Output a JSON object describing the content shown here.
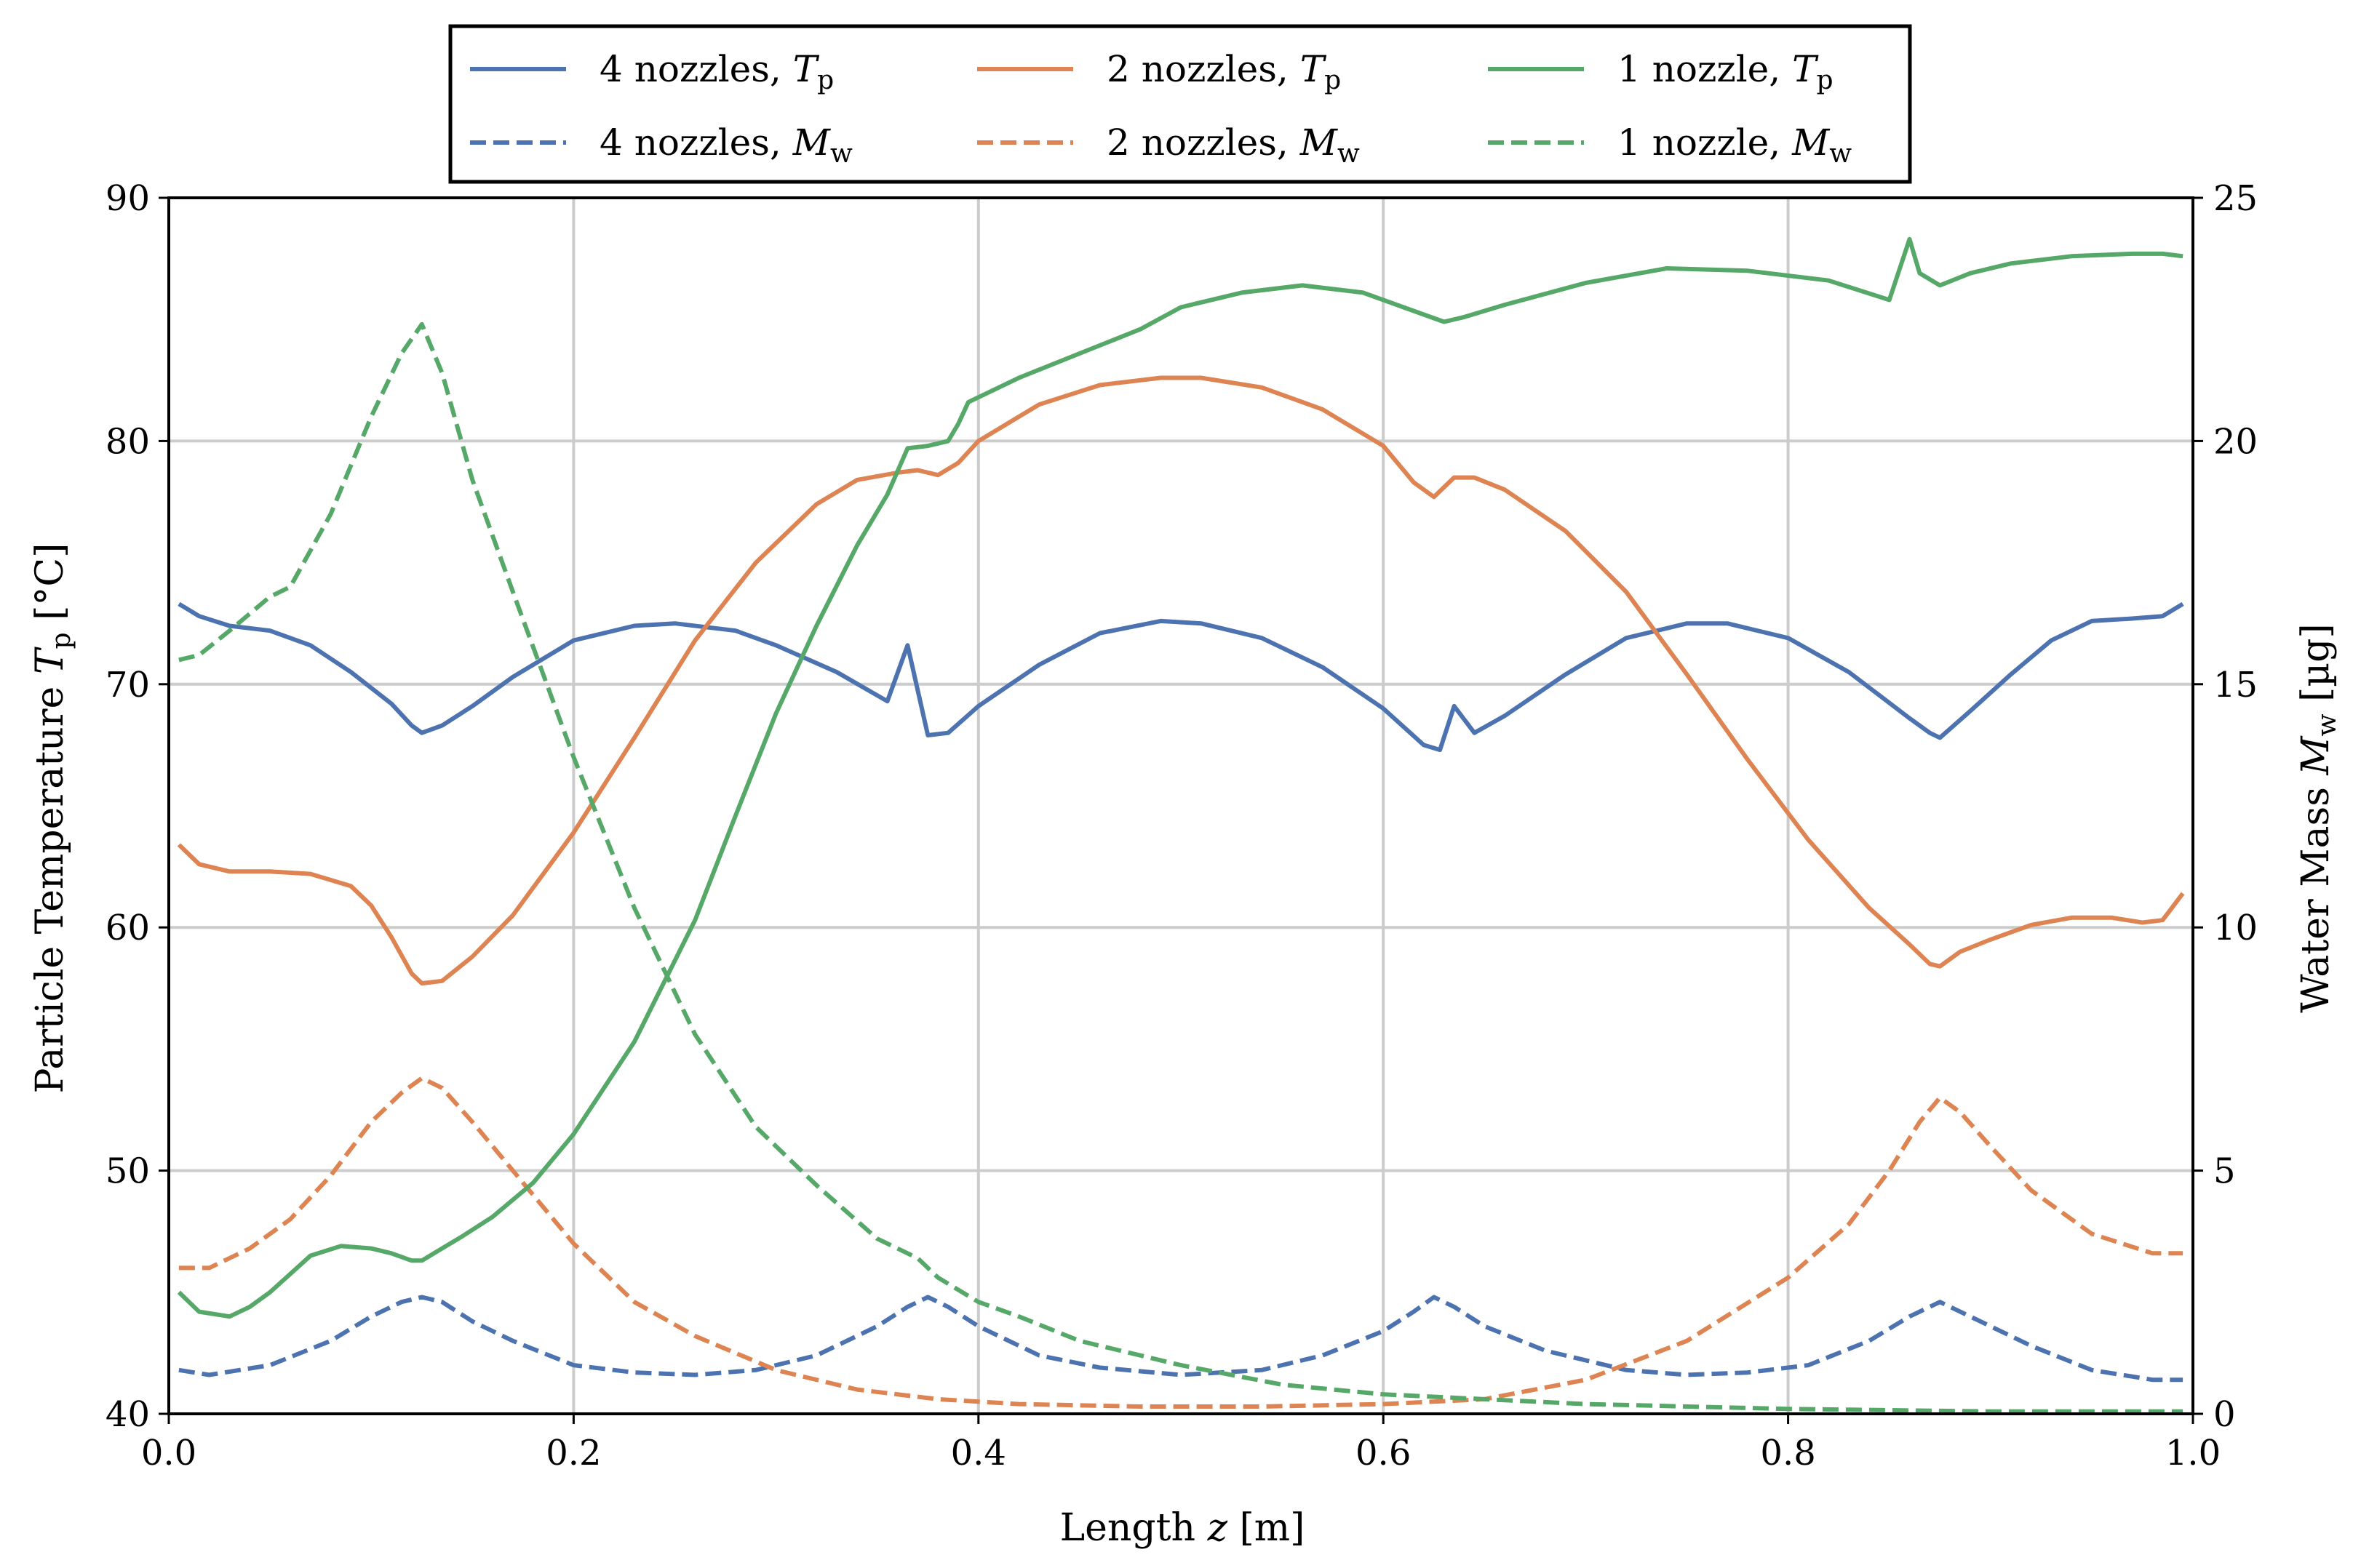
{
  "chart_data": {
    "type": "line",
    "title": "",
    "xlabel": "Length z [m]",
    "ylabel_left": "Particle Temperature Tp [°C]",
    "ylabel_right": "Water Mass Mw [µg]",
    "xlim": [
      0.0,
      1.0
    ],
    "ylim_left": [
      40,
      90
    ],
    "ylim_right": [
      0,
      25
    ],
    "xticks": [
      "0.0",
      "0.2",
      "0.4",
      "0.6",
      "0.8",
      "1.0"
    ],
    "yticks_left": [
      "40",
      "50",
      "60",
      "70",
      "80",
      "90"
    ],
    "yticks_right": [
      "0",
      "5",
      "10",
      "15",
      "20",
      "25"
    ],
    "grid": true,
    "legend_position": "top-center-outside",
    "series": [
      {
        "name": "4 nozzles, Tp",
        "label_prefix": "4 nozzles, ",
        "sym": "T",
        "sub": "p",
        "axis": "left",
        "style": "solid",
        "color": "#4c72b0",
        "x": [
          0.005,
          0.015,
          0.03,
          0.05,
          0.07,
          0.09,
          0.11,
          0.12,
          0.125,
          0.135,
          0.15,
          0.17,
          0.2,
          0.23,
          0.25,
          0.28,
          0.3,
          0.33,
          0.355,
          0.365,
          0.375,
          0.385,
          0.4,
          0.43,
          0.46,
          0.49,
          0.51,
          0.54,
          0.57,
          0.6,
          0.62,
          0.628,
          0.635,
          0.645,
          0.66,
          0.69,
          0.72,
          0.75,
          0.77,
          0.8,
          0.83,
          0.86,
          0.87,
          0.875,
          0.89,
          0.91,
          0.93,
          0.95,
          0.97,
          0.985,
          0.995
        ],
        "values": [
          73.3,
          72.8,
          72.4,
          72.2,
          71.6,
          70.5,
          69.2,
          68.3,
          68.0,
          68.3,
          69.1,
          70.3,
          71.8,
          72.4,
          72.5,
          72.2,
          71.6,
          70.5,
          69.3,
          71.6,
          67.9,
          68.0,
          69.1,
          70.8,
          72.1,
          72.6,
          72.5,
          71.9,
          70.7,
          69.0,
          67.5,
          67.3,
          69.1,
          68.0,
          68.7,
          70.4,
          71.9,
          72.5,
          72.5,
          71.9,
          70.5,
          68.6,
          68.0,
          67.8,
          68.9,
          70.4,
          71.8,
          72.6,
          72.7,
          72.8,
          73.3
        ]
      },
      {
        "name": "4 nozzles, Mw",
        "label_prefix": "4 nozzles, ",
        "sym": "M",
        "sub": "w",
        "axis": "right",
        "style": "dashed",
        "color": "#4c72b0",
        "x": [
          0.005,
          0.02,
          0.05,
          0.08,
          0.1,
          0.115,
          0.125,
          0.135,
          0.15,
          0.17,
          0.2,
          0.23,
          0.26,
          0.29,
          0.32,
          0.35,
          0.365,
          0.375,
          0.385,
          0.4,
          0.43,
          0.46,
          0.5,
          0.54,
          0.57,
          0.6,
          0.615,
          0.625,
          0.635,
          0.65,
          0.68,
          0.72,
          0.75,
          0.78,
          0.81,
          0.84,
          0.86,
          0.875,
          0.89,
          0.92,
          0.95,
          0.98,
          0.995
        ],
        "values": [
          0.9,
          0.8,
          1.0,
          1.5,
          2.0,
          2.3,
          2.4,
          2.3,
          1.9,
          1.5,
          1.0,
          0.85,
          0.8,
          0.9,
          1.2,
          1.8,
          2.2,
          2.4,
          2.2,
          1.8,
          1.2,
          0.95,
          0.8,
          0.9,
          1.2,
          1.7,
          2.1,
          2.4,
          2.2,
          1.8,
          1.3,
          0.9,
          0.8,
          0.85,
          1.0,
          1.5,
          2.0,
          2.3,
          2.0,
          1.4,
          0.9,
          0.7,
          0.7
        ]
      },
      {
        "name": "2 nozzles, Tp",
        "label_prefix": "2 nozzles, ",
        "sym": "T",
        "sub": "p",
        "axis": "left",
        "style": "solid",
        "color": "#dd8452",
        "x": [
          0.005,
          0.015,
          0.03,
          0.05,
          0.07,
          0.09,
          0.1,
          0.11,
          0.12,
          0.125,
          0.135,
          0.15,
          0.17,
          0.2,
          0.23,
          0.26,
          0.29,
          0.32,
          0.34,
          0.36,
          0.37,
          0.38,
          0.39,
          0.4,
          0.43,
          0.46,
          0.49,
          0.51,
          0.54,
          0.57,
          0.6,
          0.615,
          0.625,
          0.635,
          0.645,
          0.66,
          0.69,
          0.72,
          0.75,
          0.78,
          0.81,
          0.84,
          0.86,
          0.87,
          0.875,
          0.885,
          0.9,
          0.92,
          0.94,
          0.96,
          0.975,
          0.985,
          0.995
        ],
        "values": [
          63.4,
          62.6,
          62.3,
          62.3,
          62.2,
          61.7,
          60.9,
          59.6,
          58.1,
          57.7,
          57.8,
          58.8,
          60.5,
          63.9,
          67.8,
          71.8,
          75.0,
          77.4,
          78.4,
          78.7,
          78.8,
          78.6,
          79.1,
          80.0,
          81.5,
          82.3,
          82.6,
          82.6,
          82.2,
          81.3,
          79.8,
          78.3,
          77.7,
          78.5,
          78.5,
          78.0,
          76.3,
          73.8,
          70.4,
          66.9,
          63.6,
          60.8,
          59.3,
          58.5,
          58.4,
          59.0,
          59.5,
          60.1,
          60.4,
          60.4,
          60.2,
          60.3,
          61.4
        ]
      },
      {
        "name": "2 nozzles, Mw",
        "label_prefix": "2 nozzles, ",
        "sym": "M",
        "sub": "w",
        "axis": "right",
        "style": "dashed",
        "color": "#dd8452",
        "x": [
          0.005,
          0.02,
          0.04,
          0.06,
          0.08,
          0.1,
          0.115,
          0.125,
          0.135,
          0.15,
          0.17,
          0.2,
          0.23,
          0.26,
          0.3,
          0.34,
          0.38,
          0.42,
          0.48,
          0.54,
          0.6,
          0.65,
          0.7,
          0.75,
          0.8,
          0.83,
          0.85,
          0.865,
          0.875,
          0.885,
          0.9,
          0.92,
          0.95,
          0.98,
          0.995
        ],
        "values": [
          3.0,
          3.0,
          3.4,
          4.0,
          4.9,
          6.0,
          6.6,
          6.9,
          6.7,
          6.0,
          5.0,
          3.5,
          2.3,
          1.6,
          0.9,
          0.5,
          0.3,
          0.2,
          0.15,
          0.15,
          0.2,
          0.3,
          0.7,
          1.5,
          2.8,
          3.9,
          5.0,
          6.0,
          6.5,
          6.2,
          5.5,
          4.6,
          3.7,
          3.3,
          3.3
        ]
      },
      {
        "name": "1 nozzle, Tp",
        "label_prefix": "1 nozzle, ",
        "sym": "T",
        "sub": "p",
        "axis": "left",
        "style": "solid",
        "color": "#55a868",
        "x": [
          0.005,
          0.015,
          0.03,
          0.04,
          0.05,
          0.07,
          0.085,
          0.1,
          0.11,
          0.12,
          0.125,
          0.135,
          0.145,
          0.16,
          0.18,
          0.2,
          0.23,
          0.26,
          0.28,
          0.3,
          0.32,
          0.34,
          0.355,
          0.365,
          0.375,
          0.385,
          0.39,
          0.395,
          0.42,
          0.45,
          0.48,
          0.5,
          0.53,
          0.56,
          0.59,
          0.61,
          0.62,
          0.63,
          0.64,
          0.66,
          0.7,
          0.74,
          0.78,
          0.82,
          0.85,
          0.86,
          0.865,
          0.875,
          0.89,
          0.91,
          0.94,
          0.97,
          0.985,
          0.995
        ],
        "values": [
          45.0,
          44.2,
          44.0,
          44.4,
          45.0,
          46.5,
          46.9,
          46.8,
          46.6,
          46.3,
          46.3,
          46.8,
          47.3,
          48.1,
          49.5,
          51.5,
          55.3,
          60.3,
          64.6,
          68.8,
          72.4,
          75.7,
          77.8,
          79.7,
          79.8,
          80.0,
          80.7,
          81.6,
          82.6,
          83.6,
          84.6,
          85.5,
          86.1,
          86.4,
          86.1,
          85.5,
          85.2,
          84.9,
          85.1,
          85.6,
          86.5,
          87.1,
          87.0,
          86.6,
          85.8,
          88.3,
          86.9,
          86.4,
          86.9,
          87.3,
          87.6,
          87.7,
          87.7,
          87.6
        ]
      },
      {
        "name": "1 nozzle, Mw",
        "label_prefix": "1 nozzle, ",
        "sym": "M",
        "sub": "w",
        "axis": "right",
        "style": "dashed",
        "color": "#55a868",
        "x": [
          0.005,
          0.015,
          0.03,
          0.05,
          0.06,
          0.08,
          0.1,
          0.115,
          0.125,
          0.135,
          0.15,
          0.17,
          0.2,
          0.23,
          0.26,
          0.29,
          0.32,
          0.35,
          0.37,
          0.38,
          0.4,
          0.42,
          0.45,
          0.5,
          0.55,
          0.6,
          0.65,
          0.7,
          0.8,
          0.9,
          0.995
        ],
        "values": [
          15.5,
          15.6,
          16.1,
          16.8,
          17.0,
          18.5,
          20.5,
          21.8,
          22.4,
          21.4,
          19.2,
          16.9,
          13.5,
          10.4,
          7.8,
          5.9,
          4.7,
          3.6,
          3.2,
          2.8,
          2.3,
          2.0,
          1.5,
          1.0,
          0.6,
          0.4,
          0.3,
          0.2,
          0.1,
          0.05,
          0.05
        ]
      }
    ]
  }
}
